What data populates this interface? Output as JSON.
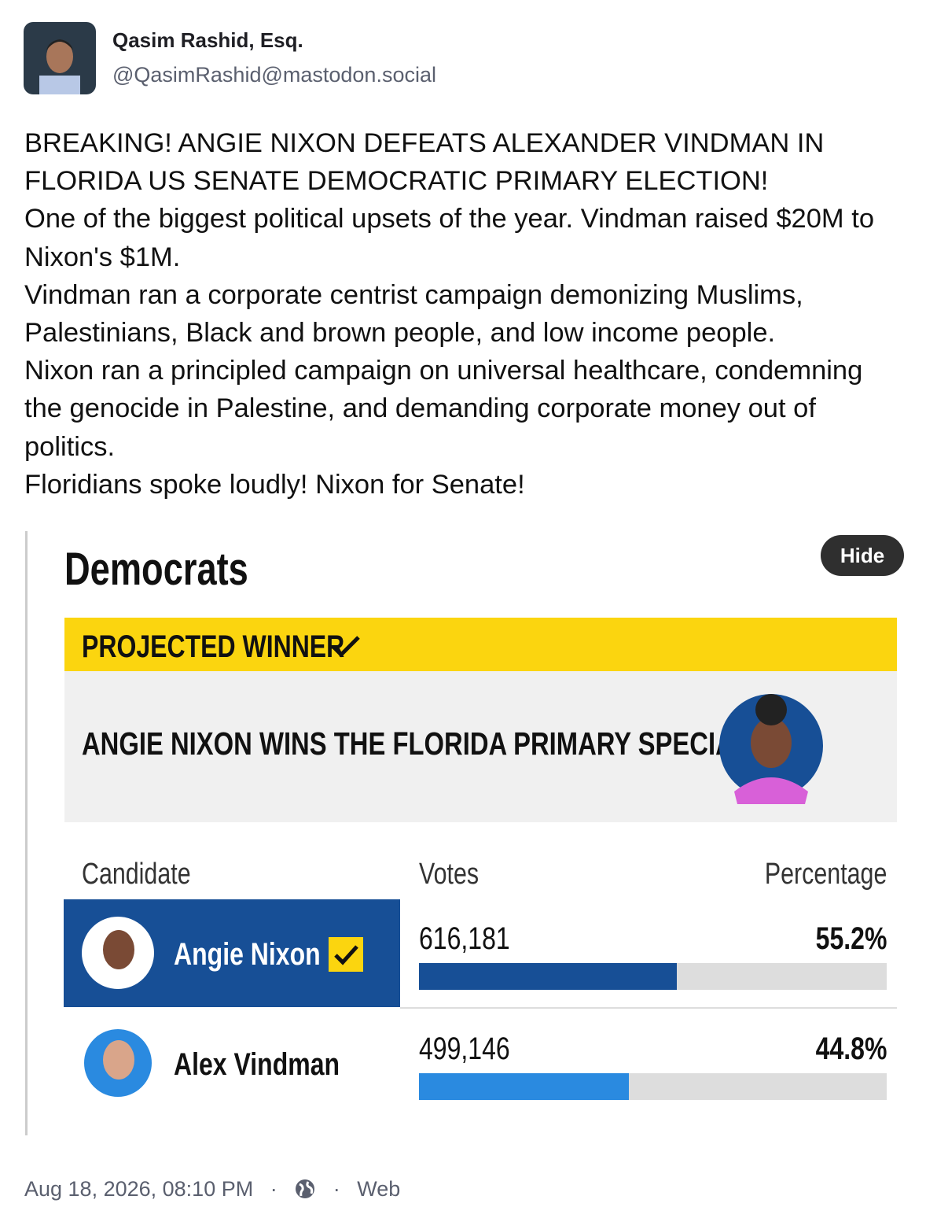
{
  "author": {
    "name": "Qasim Rashid, Esq.",
    "handle": "@QasimRashid@mastodon.social"
  },
  "post": {
    "paragraphs": [
      "BREAKING! ANGIE NIXON DEFEATS ALEXANDER VINDMAN IN FLORIDA US SENATE DEMOCRATIC PRIMARY ELECTION!",
      "One of the biggest political upsets of the year. Vindman raised $20M to Nixon's $1M.",
      "Vindman ran a corporate centrist campaign demonizing Muslims, Palestinians, Black and brown people, and low income people.",
      "Nixon ran a principled campaign on universal healthcare, condemning the genocide in Palestine, and demanding corporate money out of politics.",
      "Floridians spoke loudly! Nixon for Senate!"
    ]
  },
  "media": {
    "hide_button": "Hide",
    "party": "Democrats",
    "banner": "PROJECTED WINNER",
    "headline": "ANGIE NIXON WINS THE FLORIDA PRIMARY SPECIAL",
    "table": {
      "columns": [
        "Candidate",
        "Votes",
        "Percentage"
      ],
      "rows": [
        {
          "candidate": "Angie Nixon",
          "votes": "616,181",
          "percentage": {
            "value": 55.2,
            "label": "55.2%"
          },
          "winner": true
        },
        {
          "candidate": "Alex Vindman",
          "votes": "499,146",
          "percentage": {
            "value": 44.8,
            "label": "44.8%"
          },
          "winner": false
        }
      ]
    }
  },
  "footer": {
    "timestamp": "Aug 18, 2026, 08:10 PM",
    "source": "Web"
  }
}
